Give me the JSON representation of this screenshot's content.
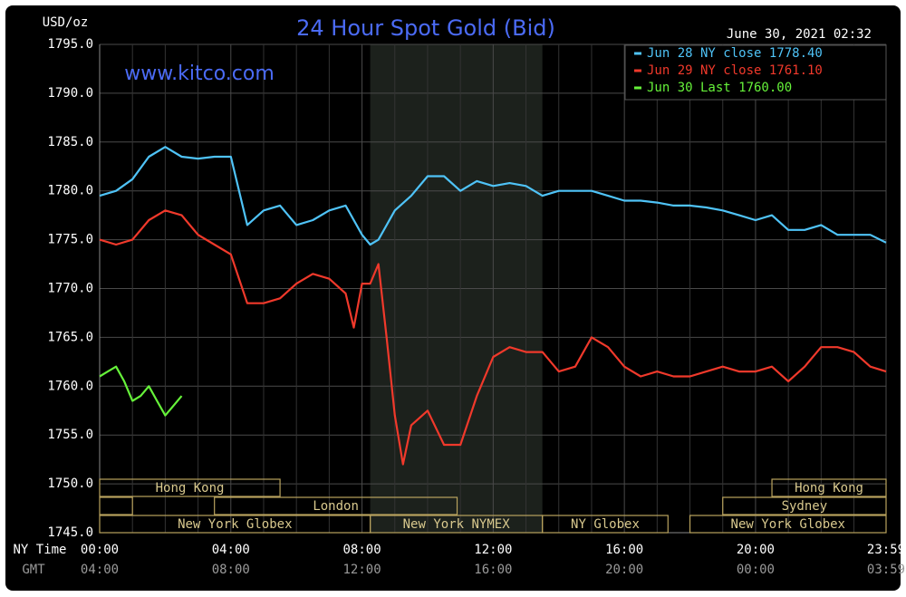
{
  "chart_data": {
    "type": "line",
    "title": "24 Hour Spot Gold (Bid)",
    "subtitle": "www.kitco.com",
    "timestamp": "June 30, 2021 02:32",
    "y_axis_label": "USD/oz",
    "x_axis_label": "NY Time",
    "x2_axis_label": "GMT",
    "xlim": [
      0,
      23.98
    ],
    "ylim": [
      1745,
      1795
    ],
    "xticks": [
      {
        "value": 0,
        "label": "00:00"
      },
      {
        "value": 4,
        "label": "04:00"
      },
      {
        "value": 8,
        "label": "08:00"
      },
      {
        "value": 12,
        "label": "12:00"
      },
      {
        "value": 16,
        "label": "16:00"
      },
      {
        "value": 20,
        "label": "20:00"
      },
      {
        "value": 23.98,
        "label": "23:59"
      }
    ],
    "x2_tick_labels": [
      "04:00",
      "08:00",
      "12:00",
      "16:00",
      "20:00",
      "00:00",
      "03:59"
    ],
    "xgrid": [
      1,
      2,
      3,
      5,
      6,
      7,
      9,
      10,
      11,
      13,
      14,
      15,
      17,
      18,
      19,
      21,
      22,
      23
    ],
    "yticks": [
      {
        "value": 1745,
        "label": "1745.0"
      },
      {
        "value": 1750,
        "label": "1750.0"
      },
      {
        "value": 1755,
        "label": "1755.0"
      },
      {
        "value": 1760,
        "label": "1760.0"
      },
      {
        "value": 1765,
        "label": "1765.0"
      },
      {
        "value": 1770,
        "label": "1770.0"
      },
      {
        "value": 1775,
        "label": "1775.0"
      },
      {
        "value": 1780,
        "label": "1780.0"
      },
      {
        "value": 1785,
        "label": "1785.0"
      },
      {
        "value": 1790,
        "label": "1790.0"
      },
      {
        "value": 1795,
        "label": "1795.0"
      }
    ],
    "grid": true,
    "legend": "upper right",
    "shaded_range": [
      8.25,
      13.5
    ],
    "sessions": [
      {
        "label": "Hong Kong",
        "start": 0,
        "end": 5.5,
        "row": 1
      },
      {
        "label": "Hong Kong",
        "start": 20.5,
        "end": 24,
        "row": 1
      },
      {
        "label": null,
        "start": 0,
        "end": 1,
        "row": 2
      },
      {
        "label": "London",
        "start": 3.5,
        "end": 10.9,
        "row": 2
      },
      {
        "label": "Sydney",
        "start": 19,
        "end": 24,
        "row": 2
      },
      {
        "label": "New York Globex",
        "start": 0,
        "end": 8.25,
        "row": 3
      },
      {
        "label": "New York NYMEX",
        "start": 8.25,
        "end": 13.5,
        "row": 3
      },
      {
        "label": "NY Globex",
        "start": 13.5,
        "end": 17.33,
        "row": 3
      },
      {
        "label": "New York Globex",
        "start": 18,
        "end": 24,
        "row": 3
      }
    ],
    "series": [
      {
        "name": "Jun 28 NY close 1778.40",
        "color": "#4fc3f7",
        "x": [
          0,
          0.5,
          1,
          1.5,
          2,
          2.5,
          3,
          3.5,
          4,
          4.5,
          5,
          5.5,
          6,
          6.5,
          7,
          7.5,
          8,
          8.25,
          8.5,
          9,
          9.5,
          10,
          10.5,
          11,
          11.5,
          12,
          12.5,
          13,
          13.5,
          14,
          14.5,
          15,
          15.5,
          16,
          16.5,
          17,
          17.5,
          18,
          18.5,
          19,
          19.5,
          20,
          20.5,
          21,
          21.5,
          22,
          22.5,
          23,
          23.5,
          23.98
        ],
        "values": [
          1779.5,
          1780,
          1781.2,
          1783.5,
          1784.5,
          1783.5,
          1783.3,
          1783.5,
          1783.5,
          1776.5,
          1778,
          1778.5,
          1776.5,
          1777,
          1778,
          1778.5,
          1775.5,
          1774.5,
          1775,
          1778,
          1779.5,
          1781.5,
          1781.5,
          1780,
          1781,
          1780.5,
          1780.8,
          1780.5,
          1779.5,
          1780,
          1780,
          1780,
          1779.5,
          1779,
          1779,
          1778.8,
          1778.5,
          1778.5,
          1778.3,
          1778,
          1777.5,
          1777,
          1777.5,
          1776,
          1776,
          1776.5,
          1775.5,
          1775.5,
          1775.5,
          1774.7
        ]
      },
      {
        "name": "Jun 29 NY close 1761.10",
        "color": "#f0392b",
        "x": [
          0,
          0.5,
          1,
          1.5,
          2,
          2.5,
          3,
          3.5,
          4,
          4.5,
          5,
          5.5,
          6,
          6.5,
          7,
          7.5,
          7.75,
          8,
          8.25,
          8.5,
          8.75,
          9,
          9.25,
          9.5,
          10,
          10.5,
          11,
          11.5,
          12,
          12.5,
          13,
          13.5,
          14,
          14.5,
          15,
          15.5,
          16,
          16.5,
          17,
          17.5,
          18,
          18.5,
          19,
          19.5,
          20,
          20.5,
          21,
          21.5,
          22,
          22.5,
          23,
          23.5,
          23.98
        ],
        "values": [
          1775,
          1774.5,
          1775,
          1777,
          1778,
          1777.5,
          1775.5,
          1774.5,
          1773.5,
          1768.5,
          1768.5,
          1769,
          1770.5,
          1771.5,
          1771,
          1769.5,
          1766,
          1770.5,
          1770.5,
          1772.5,
          1765,
          1757,
          1752,
          1756,
          1757.5,
          1754,
          1754,
          1759,
          1763,
          1764,
          1763.5,
          1763.5,
          1761.5,
          1762,
          1765,
          1764,
          1762,
          1761,
          1761.5,
          1761,
          1761,
          1761.5,
          1762,
          1761.5,
          1761.5,
          1762,
          1760.5,
          1762,
          1764,
          1764,
          1763.5,
          1762,
          1761.5
        ]
      },
      {
        "name": "Jun 30 Last 1760.00",
        "color": "#66f23a",
        "x": [
          0,
          0.25,
          0.5,
          0.75,
          1,
          1.25,
          1.5,
          1.75,
          2,
          2.25,
          2.5
        ],
        "values": [
          1761,
          1761.5,
          1762,
          1760.5,
          1758.5,
          1759,
          1760,
          1758.5,
          1757,
          1758,
          1759
        ]
      }
    ]
  }
}
